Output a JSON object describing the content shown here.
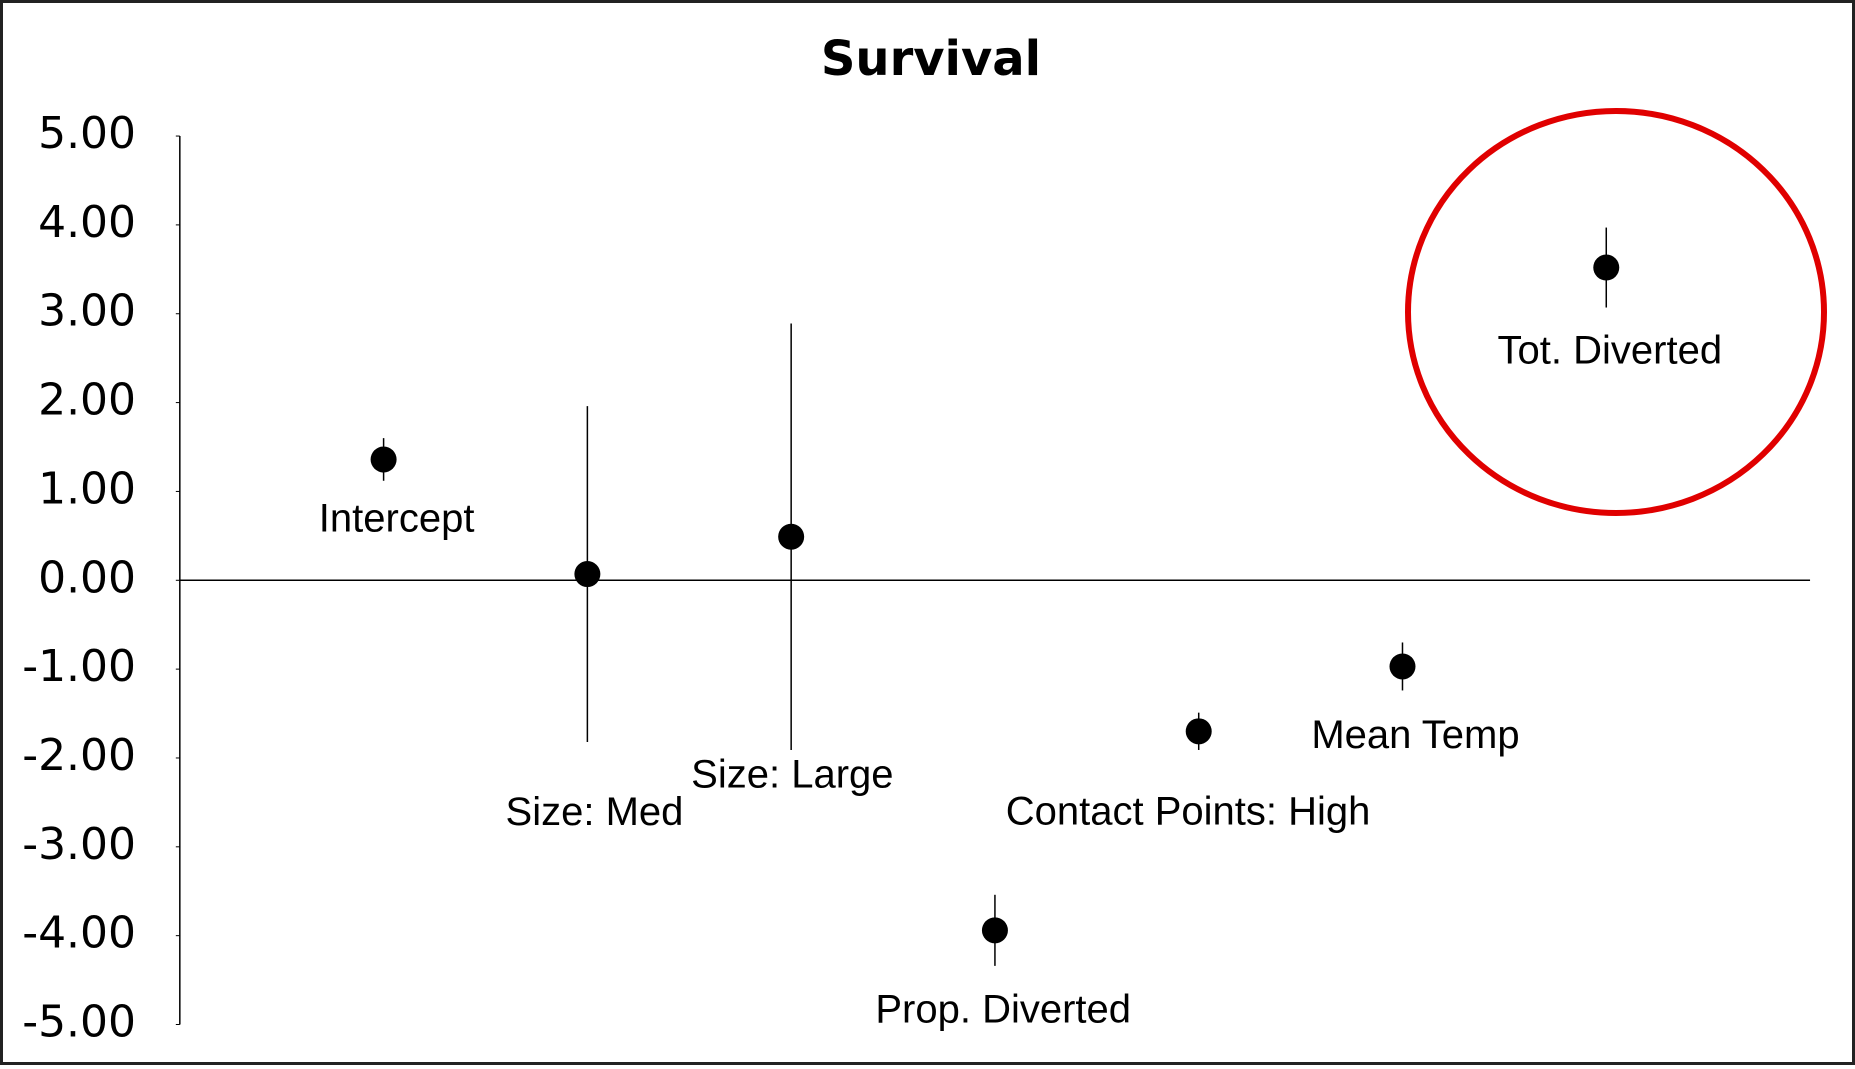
{
  "chart_data": {
    "type": "scatter",
    "title": "Survival",
    "categories": [
      "Intercept",
      "Size: Med",
      "Size: Large",
      "Prop. Diverted",
      "Contact Points: High",
      "Mean Temp",
      "Tot. Diverted"
    ],
    "values": [
      1.36,
      0.07,
      0.49,
      -3.94,
      -1.7,
      -0.97,
      3.52
    ],
    "errors": [
      0.24,
      1.89,
      2.4,
      0.4,
      0.21,
      0.27,
      0.45
    ],
    "color": "#000000",
    "ylim": [
      -5,
      5
    ],
    "yticks": [
      {
        "value": 5,
        "label": "5.00"
      },
      {
        "value": 4,
        "label": "4.00"
      },
      {
        "value": 3,
        "label": "3.00"
      },
      {
        "value": 2,
        "label": "2.00"
      },
      {
        "value": 1,
        "label": "1.00"
      },
      {
        "value": 0,
        "label": "0.00"
      },
      {
        "value": -1,
        "label": "-1.00"
      },
      {
        "value": -2,
        "label": "-2.00"
      },
      {
        "value": -3,
        "label": "-3.00"
      },
      {
        "value": -4,
        "label": "-4.00"
      },
      {
        "value": -5,
        "label": "-5.00"
      }
    ]
  }
}
